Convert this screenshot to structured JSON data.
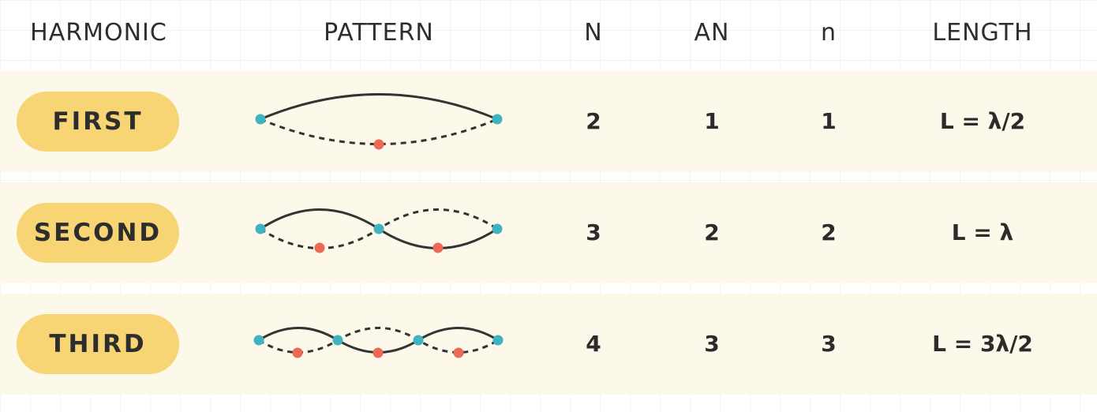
{
  "headers": {
    "harmonic": "HARMONIC",
    "pattern": "PATTERN",
    "n_nodes": "N",
    "antinodes": "AN",
    "n": "n",
    "length": "LENGTH"
  },
  "rows": [
    {
      "harmonic": "FIRST",
      "N": "2",
      "AN": "1",
      "n": "1",
      "length": "L = λ/2"
    },
    {
      "harmonic": "SECOND",
      "N": "3",
      "AN": "2",
      "n": "2",
      "length": "L = λ"
    },
    {
      "harmonic": "THIRD",
      "N": "4",
      "AN": "3",
      "n": "3",
      "length": "L = 3λ/2"
    }
  ],
  "colors": {
    "row_background": "#fdf9ea",
    "pill": "#f7d474",
    "node_dot": "#3fb3c0",
    "antinode_dot": "#ec6a55",
    "wave_line": "#333333"
  }
}
